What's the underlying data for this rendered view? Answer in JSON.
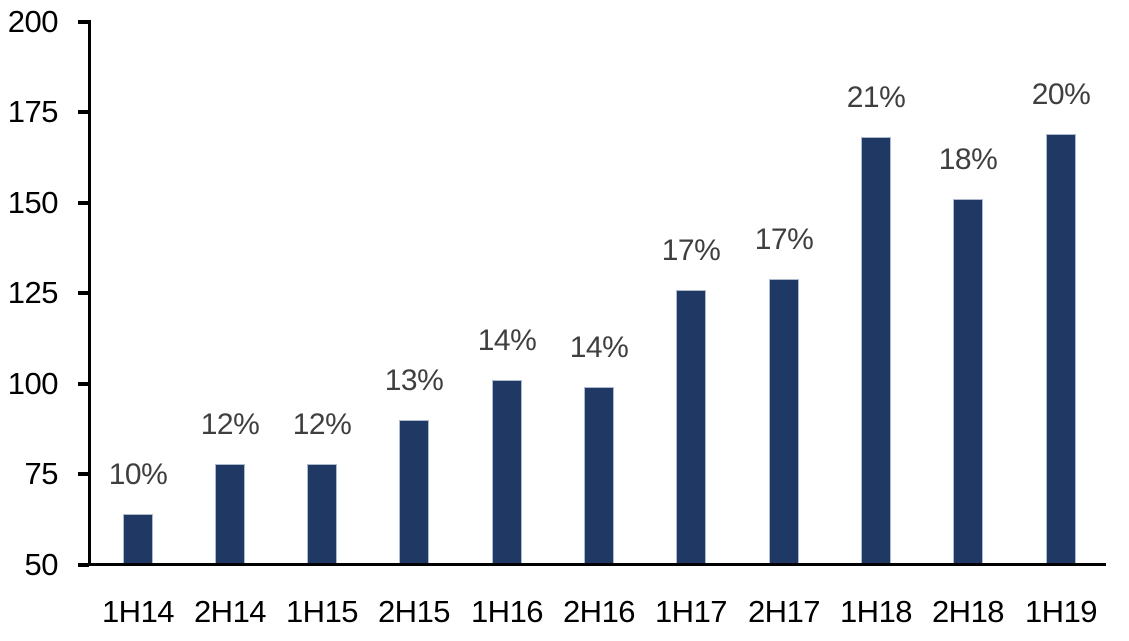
{
  "chart_data": {
    "type": "bar",
    "title": "",
    "xlabel": "",
    "ylabel": "",
    "categories": [
      "1H14",
      "2H14",
      "1H15",
      "2H15",
      "1H16",
      "2H16",
      "1H17",
      "2H17",
      "1H18",
      "2H18",
      "1H19"
    ],
    "values": [
      64,
      78,
      78,
      90,
      101,
      99,
      126,
      129,
      168,
      151,
      169
    ],
    "bar_labels": [
      "10%",
      "12%",
      "12%",
      "13%",
      "14%",
      "14%",
      "17%",
      "17%",
      "21%",
      "18%",
      "20%"
    ],
    "ylim": [
      50,
      200
    ],
    "yticks": [
      50,
      75,
      100,
      125,
      150,
      175,
      200
    ],
    "grid": false,
    "legend": false,
    "colors": {
      "bar_fill": "#1f3864",
      "bar_border": "#aebbce",
      "data_label": "#3f3f3f",
      "axis": "#000000",
      "tick_label": "#000000",
      "background": "#ffffff"
    }
  }
}
